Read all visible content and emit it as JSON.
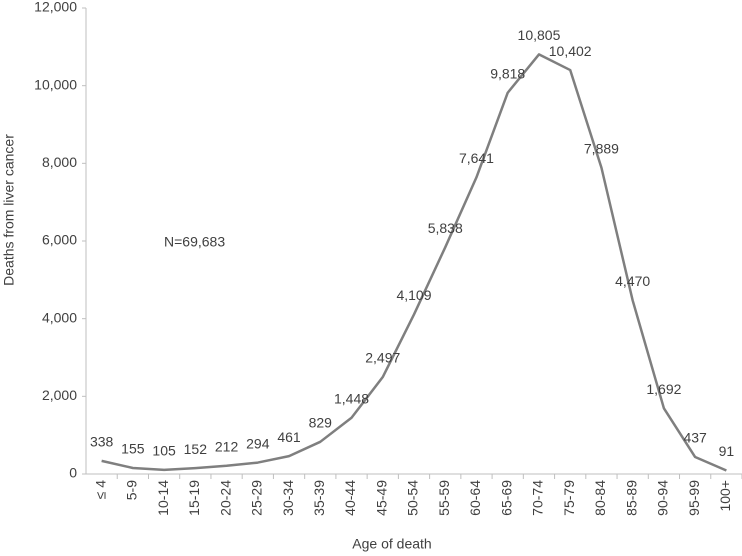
{
  "chart_data": {
    "type": "line",
    "y_label": "Deaths from liver cancer",
    "x_label": "Age of death",
    "annotation": "N=69,683",
    "categories": [
      "≤ 4",
      "5-9",
      "10-14",
      "15-19",
      "20-24",
      "25-29",
      "30-34",
      "35-39",
      "40-44",
      "45-49",
      "50-54",
      "55-59",
      "60-64",
      "65-69",
      "70-74",
      "75-79",
      "80-84",
      "85-89",
      "90-94",
      "95-99",
      "100+"
    ],
    "values": [
      338,
      155,
      105,
      152,
      212,
      294,
      461,
      829,
      1448,
      2497,
      4109,
      5838,
      7641,
      9818,
      10805,
      10402,
      7889,
      4470,
      1692,
      437,
      91
    ],
    "value_labels": [
      "338",
      "155",
      "105",
      "152",
      "212",
      "294",
      "461",
      "829",
      "1,448",
      "2,497",
      "4,109",
      "5,838",
      "7,641",
      "9,818",
      "10,805",
      "10,402",
      "7,889",
      "4,470",
      "1,692",
      "437",
      "91"
    ],
    "color": "#7f7f7f",
    "ylim": [
      0,
      12000
    ],
    "yticks": [
      0,
      {
        "value": 2000,
        "label": "2,000"
      },
      {
        "value": 4000,
        "label": "4,000"
      },
      {
        "value": 6000,
        "label": "6,000"
      },
      {
        "value": 8000,
        "label": "8,000"
      },
      {
        "value": 10000,
        "label": "10,000"
      },
      {
        "value": 12000,
        "label": "12,000"
      }
    ],
    "grid": false
  }
}
